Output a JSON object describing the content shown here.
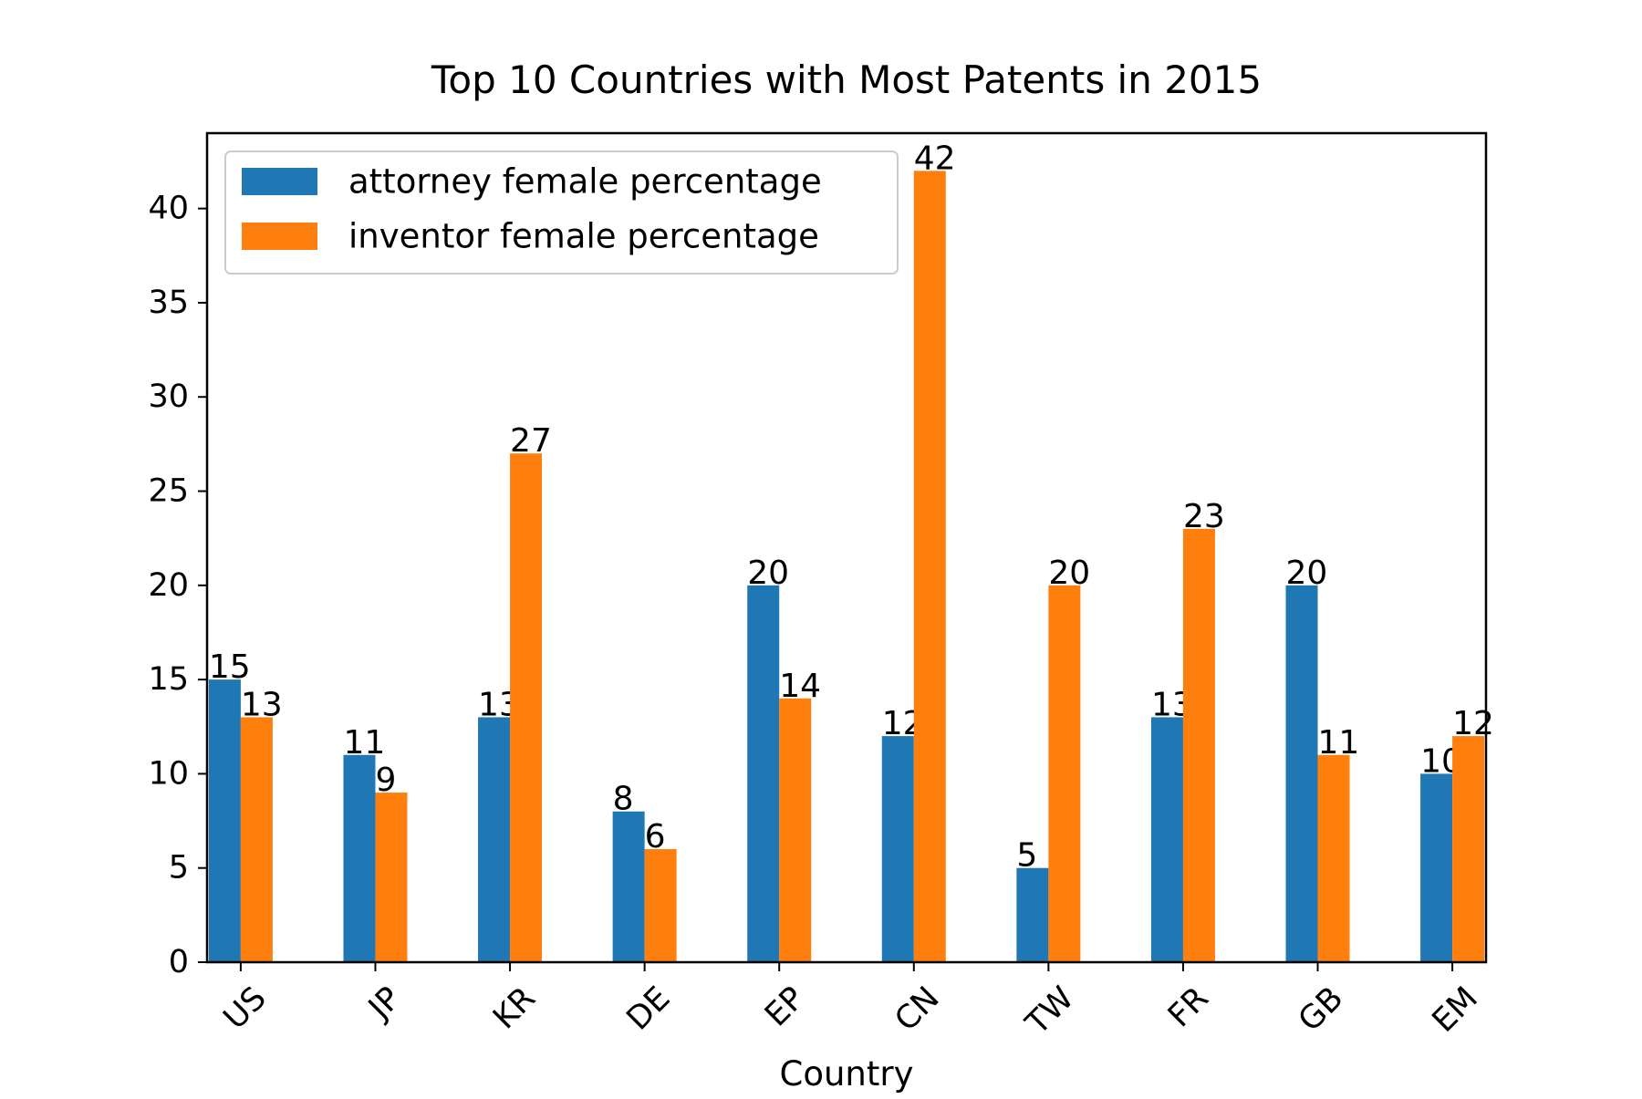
{
  "chart_data": {
    "type": "bar",
    "title": "Top 10 Countries with Most Patents in 2015",
    "xlabel": "Country",
    "ylabel": "",
    "categories": [
      "US",
      "JP",
      "KR",
      "DE",
      "EP",
      "CN",
      "TW",
      "FR",
      "GB",
      "EM"
    ],
    "series": [
      {
        "name": "attorney female percentage",
        "color": "#1f77b4",
        "values": [
          15,
          11,
          13,
          8,
          20,
          12,
          5,
          13,
          20,
          10
        ]
      },
      {
        "name": "inventor female percentage",
        "color": "#ff7f0e",
        "values": [
          13,
          9,
          27,
          6,
          14,
          42,
          20,
          23,
          11,
          12
        ]
      }
    ],
    "ylim": [
      0,
      44
    ],
    "yticks": [
      0,
      5,
      10,
      15,
      20,
      25,
      30,
      35,
      40
    ],
    "grid": false,
    "legend_position": "top-left",
    "data_labels": true
  }
}
